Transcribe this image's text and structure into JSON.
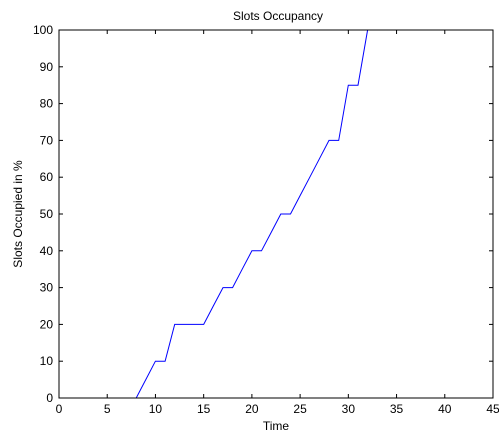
{
  "chart_data": {
    "type": "line",
    "title": "Slots Occupancy",
    "xlabel": "Time",
    "ylabel": "Slots Occupied in %",
    "xlim": [
      0,
      45
    ],
    "ylim": [
      0,
      100
    ],
    "xticks": [
      0,
      5,
      10,
      15,
      20,
      25,
      30,
      35,
      40,
      45
    ],
    "yticks": [
      0,
      10,
      20,
      30,
      40,
      50,
      60,
      70,
      80,
      90,
      100
    ],
    "grid": false,
    "series": [
      {
        "color": "#0000ff",
        "x": [
          8,
          9,
          10,
          11,
          12,
          13,
          14,
          15,
          16,
          17,
          18,
          19,
          20,
          21,
          22,
          23,
          24,
          25,
          26,
          27,
          28,
          29,
          30,
          31,
          32
        ],
        "y": [
          0,
          5,
          10,
          10,
          20,
          20,
          20,
          20,
          25,
          30,
          30,
          35,
          40,
          40,
          45,
          50,
          50,
          55,
          60,
          65,
          70,
          70,
          85,
          85,
          100
        ]
      }
    ]
  }
}
